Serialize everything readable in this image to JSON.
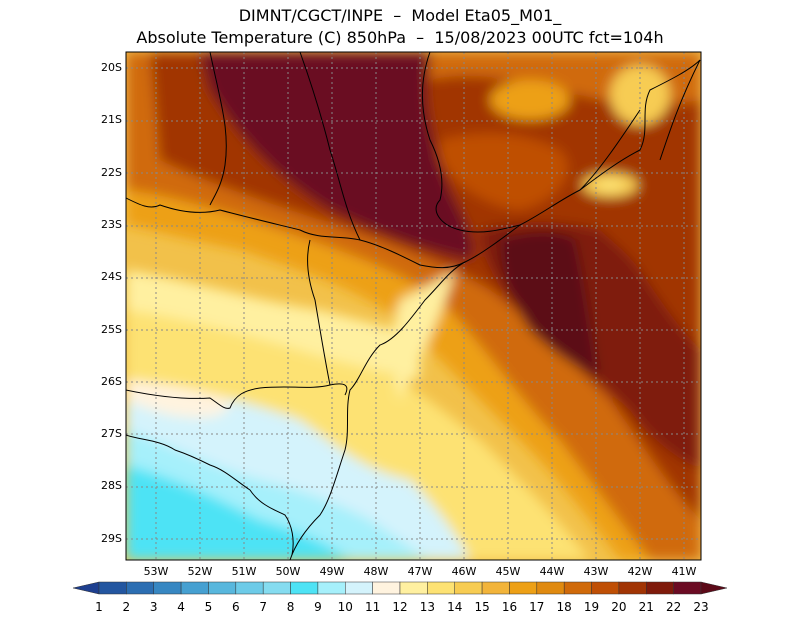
{
  "header": {
    "title_line1": "DIMNT/CGCT/INPE  –  Model Eta05_M01_",
    "title_line2": "Absolute Temperature (C) 850hPa  –  15/08/2023 00UTC fct=104h"
  },
  "map": {
    "lat_labels": [
      "20S",
      "21S",
      "22S",
      "23S",
      "24S",
      "25S",
      "26S",
      "27S",
      "28S",
      "29S"
    ],
    "lon_labels": [
      "53W",
      "52W",
      "51W",
      "50W",
      "49W",
      "48W",
      "47W",
      "46W",
      "45W",
      "44W",
      "43W",
      "42W",
      "41W"
    ],
    "lat_range": [
      -29.5,
      -19.5
    ],
    "lon_range": [
      -53.7,
      -40.5
    ]
  },
  "colorbar": {
    "labels": [
      "1",
      "2",
      "3",
      "4",
      "5",
      "6",
      "7",
      "8",
      "9",
      "10",
      "11",
      "12",
      "13",
      "14",
      "15",
      "16",
      "17",
      "18",
      "19",
      "20",
      "21",
      "22",
      "23"
    ],
    "colors": [
      "#1e3f8f",
      "#2356a0",
      "#2c6eb2",
      "#3787c2",
      "#46a0d1",
      "#58b7dd",
      "#6dcbe8",
      "#85dcf0",
      "#4ee3f5",
      "#a6f0fb",
      "#d4f3fc",
      "#fff3df",
      "#fff0a0",
      "#fde273",
      "#f7cc52",
      "#f2b43a",
      "#eda016",
      "#e08a10",
      "#d06a0a",
      "#bf4f05",
      "#a13404",
      "#7f1a0b",
      "#6b0b23",
      "#5c0a18"
    ]
  }
}
